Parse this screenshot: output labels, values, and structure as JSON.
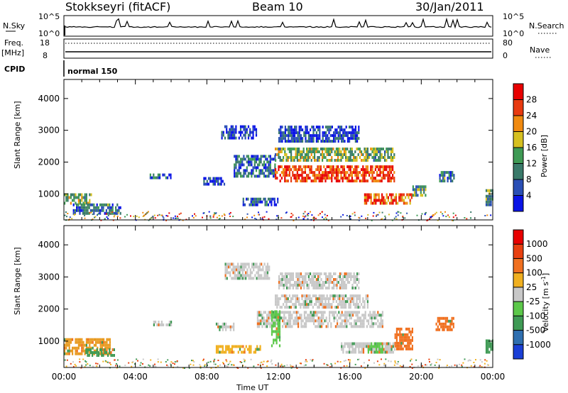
{
  "header": {
    "station": "Stokkseyri (fitACF)",
    "beam": "Beam 10",
    "date": "30/Jan/2011"
  },
  "top_panels": {
    "nsky_label": "N.Sky",
    "nsearch_label": "N.Search",
    "nsky_ticks": [
      "10^5",
      "10^0"
    ],
    "nsearch_ticks": [
      "10^5",
      "10^0"
    ],
    "freq_label_top": "Freq.",
    "freq_label_bottom": "[MHz]",
    "freq_ticks": [
      "18",
      "8"
    ],
    "nave_label": "Nave",
    "nave_ticks": [
      "80",
      "0"
    ],
    "cpid_label": "CPID",
    "cpid_value": "normal 150"
  },
  "chart_data": [
    {
      "type": "heatmap",
      "name": "power",
      "ylabel": "Slant Range [km]",
      "xlabel": "",
      "x_ticks": [
        "00:00",
        "04:00",
        "08:00",
        "12:00",
        "16:00",
        "20:00",
        "00:00"
      ],
      "xlim_hours": [
        0,
        24
      ],
      "ylim_km": [
        180,
        4600
      ],
      "y_ticks": [
        1000,
        2000,
        3000,
        4000
      ],
      "colorbar": {
        "label": "Power [dB]",
        "ticks": [
          "4",
          "8",
          "12",
          "16",
          "20",
          "24",
          "28"
        ],
        "colors": [
          "#0a14e6",
          "#2a4fb5",
          "#3a7a6a",
          "#3f9a55",
          "#d6c020",
          "#f08a10",
          "#e83a10",
          "#e80000"
        ]
      },
      "echo_regions": [
        {
          "t0": 0.0,
          "t1": 1.5,
          "r0": 750,
          "r1": 1100,
          "level": 0.45
        },
        {
          "t0": 0.5,
          "t1": 3.2,
          "r0": 430,
          "r1": 700,
          "level": 0.3
        },
        {
          "t0": 4.8,
          "t1": 6.0,
          "r0": 1550,
          "r1": 1700,
          "level": 0.2
        },
        {
          "t0": 7.8,
          "t1": 9.0,
          "r0": 1350,
          "r1": 1550,
          "level": 0.15
        },
        {
          "t0": 8.8,
          "t1": 10.8,
          "r0": 2800,
          "r1": 3200,
          "level": 0.1
        },
        {
          "t0": 9.5,
          "t1": 11.8,
          "r0": 1600,
          "r1": 2300,
          "level": 0.25
        },
        {
          "t0": 10.0,
          "t1": 12.0,
          "r0": 700,
          "r1": 900,
          "level": 0.2
        },
        {
          "t0": 11.8,
          "t1": 18.5,
          "r0": 1450,
          "r1": 1900,
          "level": 0.85
        },
        {
          "t0": 11.8,
          "t1": 18.5,
          "r0": 2100,
          "r1": 2500,
          "level": 0.45
        },
        {
          "t0": 12.0,
          "t1": 16.5,
          "r0": 2700,
          "r1": 3200,
          "level": 0.15
        },
        {
          "t0": 16.8,
          "t1": 19.5,
          "r0": 750,
          "r1": 1100,
          "level": 0.75
        },
        {
          "t0": 19.5,
          "t1": 20.2,
          "r0": 1000,
          "r1": 1300,
          "level": 0.4
        },
        {
          "t0": 21.0,
          "t1": 21.8,
          "r0": 1450,
          "r1": 1750,
          "level": 0.3
        },
        {
          "t0": 23.6,
          "t1": 24.0,
          "r0": 700,
          "r1": 1200,
          "level": 0.35
        }
      ]
    },
    {
      "type": "heatmap",
      "name": "velocity",
      "ylabel": "Slant Range [km]",
      "xlabel": "Time UT",
      "x_ticks": [
        "00:00",
        "04:00",
        "08:00",
        "12:00",
        "16:00",
        "20:00",
        "00:00"
      ],
      "xlim_hours": [
        0,
        24
      ],
      "ylim_km": [
        180,
        4600
      ],
      "y_ticks": [
        1000,
        2000,
        3000,
        4000
      ],
      "colorbar": {
        "label": "Velocity [m s^-1]",
        "ticks": [
          "1000",
          "500",
          "100",
          "25",
          "-25",
          "-100",
          "-500",
          "-1000"
        ],
        "colors": [
          "#1a3fd6",
          "#2f6fb0",
          "#3f9a55",
          "#5cc84a",
          "#c8c8c8",
          "#f0b020",
          "#f07020",
          "#e84010",
          "#e80000"
        ]
      },
      "echo_regions": [
        {
          "t0": 0.0,
          "t1": 2.6,
          "r0": 650,
          "r1": 1100,
          "color": "#e89a20"
        },
        {
          "t0": 1.2,
          "t1": 2.8,
          "r0": 600,
          "r1": 850,
          "color": "#3f9a55"
        },
        {
          "t0": 5.0,
          "t1": 6.0,
          "r0": 1550,
          "r1": 1700,
          "color": "#c8c8c8"
        },
        {
          "t0": 8.5,
          "t1": 9.5,
          "r0": 1400,
          "r1": 1600,
          "color": "#c8c8c8"
        },
        {
          "t0": 9.0,
          "t1": 11.5,
          "r0": 3000,
          "r1": 3500,
          "color": "#c8c8c8"
        },
        {
          "t0": 8.5,
          "t1": 11.0,
          "r0": 700,
          "r1": 950,
          "color": "#f0b020"
        },
        {
          "t0": 10.8,
          "t1": 17.8,
          "r0": 1500,
          "r1": 2000,
          "color": "#c8c8c8"
        },
        {
          "t0": 11.8,
          "t1": 17.0,
          "r0": 2100,
          "r1": 2500,
          "color": "#c8c8c8"
        },
        {
          "t0": 12.0,
          "t1": 16.5,
          "r0": 2700,
          "r1": 3200,
          "color": "#c8c8c8"
        },
        {
          "t0": 11.6,
          "t1": 12.1,
          "r0": 900,
          "r1": 2000,
          "color": "#5cc84a"
        },
        {
          "t0": 15.5,
          "t1": 18.5,
          "r0": 700,
          "r1": 1000,
          "color": "#c8c8c8"
        },
        {
          "t0": 17.0,
          "t1": 17.8,
          "r0": 700,
          "r1": 1000,
          "color": "#5cc84a"
        },
        {
          "t0": 18.5,
          "t1": 19.5,
          "r0": 800,
          "r1": 1500,
          "color": "#f07020"
        },
        {
          "t0": 20.8,
          "t1": 21.8,
          "r0": 1400,
          "r1": 1800,
          "color": "#f07020"
        },
        {
          "t0": 23.6,
          "t1": 24.0,
          "r0": 700,
          "r1": 1100,
          "color": "#3f9a55"
        }
      ]
    }
  ]
}
